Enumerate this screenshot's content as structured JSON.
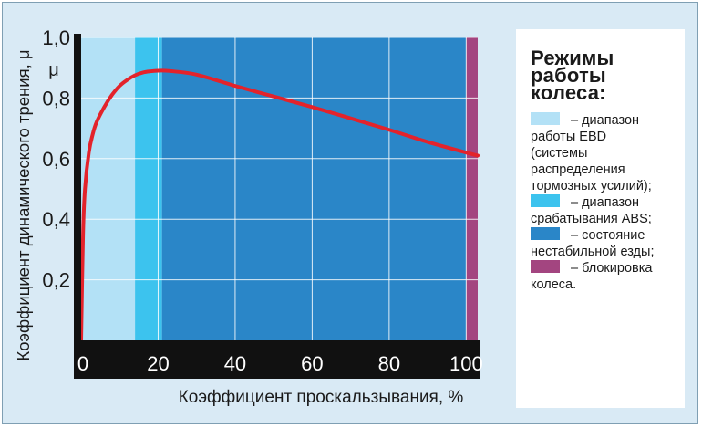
{
  "chart_data": {
    "type": "line",
    "ylabel": "Коэффициент динамического трения, μ",
    "xlabel": "Коэффициент проскальзывания, %",
    "y_unit_label": "μ",
    "xlim": [
      0,
      103
    ],
    "ylim": [
      0,
      1.0
    ],
    "x_ticks": [
      {
        "value": 0,
        "label": "0"
      },
      {
        "value": 20,
        "label": "20"
      },
      {
        "value": 40,
        "label": "40"
      },
      {
        "value": 60,
        "label": "60"
      },
      {
        "value": 80,
        "label": "80"
      },
      {
        "value": 100,
        "label": "100"
      }
    ],
    "y_ticks": [
      {
        "value": 0.2,
        "label": "0,2"
      },
      {
        "value": 0.4,
        "label": "0,4"
      },
      {
        "value": 0.6,
        "label": "0,6"
      },
      {
        "value": 0.8,
        "label": "0,8"
      },
      {
        "value": 1.0,
        "label": "1,0"
      }
    ],
    "grid": true,
    "bands": [
      {
        "from": 0,
        "to": 14,
        "color": "#b3e1f6"
      },
      {
        "from": 14,
        "to": 21,
        "color": "#3cc3ee"
      },
      {
        "from": 21,
        "to": 100,
        "color": "#2a86c8"
      },
      {
        "from": 100,
        "to": 103,
        "color": "#a34580"
      }
    ],
    "series": [
      {
        "color": "#e3232b",
        "x": [
          0,
          0.5,
          1,
          2,
          3,
          4,
          6,
          8,
          10,
          12,
          14,
          16,
          18,
          20,
          22,
          24,
          30,
          40,
          50,
          60,
          70,
          80,
          90,
          100,
          103
        ],
        "y": [
          0,
          0.35,
          0.5,
          0.62,
          0.68,
          0.72,
          0.77,
          0.81,
          0.84,
          0.86,
          0.875,
          0.884,
          0.888,
          0.89,
          0.89,
          0.888,
          0.877,
          0.84,
          0.805,
          0.77,
          0.733,
          0.695,
          0.655,
          0.62,
          0.61
        ]
      }
    ]
  },
  "legend": {
    "title": "Режимы\nработы\nколеса:",
    "items": [
      {
        "color": "#b3e1f6",
        "first": "– диапазон",
        "rest": [
          "работы EBD",
          "(системы",
          "распределения",
          "тормозных усилий);"
        ]
      },
      {
        "color": "#3cc3ee",
        "first": "– диапазон",
        "rest": [
          "срабатывания ABS;"
        ]
      },
      {
        "color": "#2a86c8",
        "first": "– состояние",
        "rest": [
          "нестабильной езды;"
        ]
      },
      {
        "color": "#a34580",
        "first": "– блокировка",
        "rest": [
          "колеса."
        ]
      }
    ]
  }
}
